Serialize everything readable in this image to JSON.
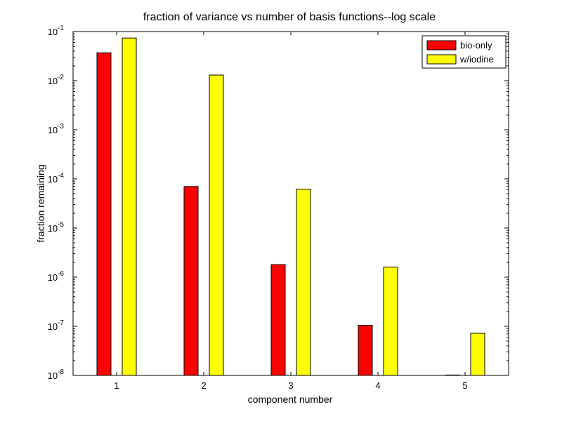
{
  "chart_data": {
    "type": "bar",
    "title": "fraction of variance vs number of basis functions--log scale",
    "xlabel": "component number",
    "ylabel": "fraction remaining",
    "categories": [
      "1",
      "2",
      "3",
      "4",
      "5"
    ],
    "yscale": "log",
    "ylim": [
      1e-08,
      0.1
    ],
    "y_tick_mantissa": "10",
    "y_tick_exponents": [
      "-8",
      "-7",
      "-6",
      "-5",
      "-4",
      "-3",
      "-2",
      "-1"
    ],
    "grid": false,
    "legend_position": "top-right",
    "series": [
      {
        "name": "bio-only",
        "color": "#ff0000",
        "values": [
          0.037,
          7e-05,
          1.8e-06,
          1.05e-07,
          1.02e-08
        ]
      },
      {
        "name": "w/iodine",
        "color": "#ffff00",
        "values": [
          0.074,
          0.013,
          6.2e-05,
          1.6e-06,
          7.2e-08
        ]
      }
    ]
  }
}
